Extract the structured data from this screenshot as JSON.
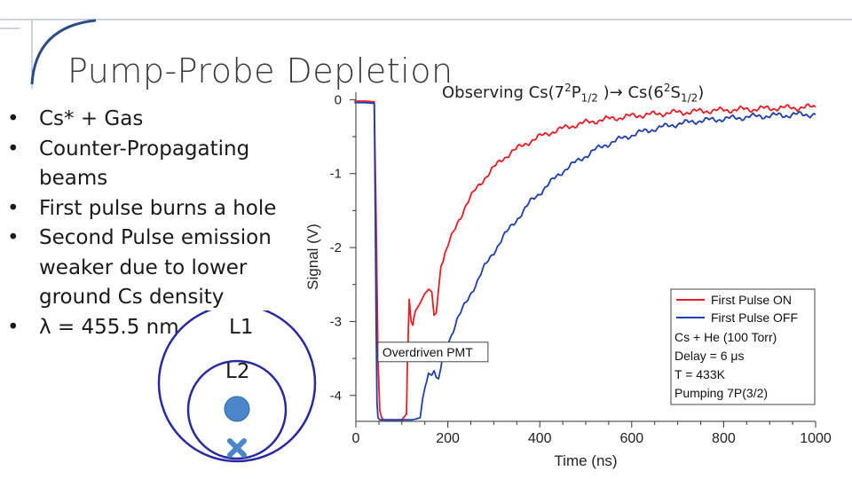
{
  "slide": {
    "title": "Pump-Probe Depletion",
    "bullets": [
      "Cs* + Gas",
      "Counter-Propagating beams",
      "First pulse burns a hole",
      "Second Pulse emission weaker due to lower ground Cs density",
      "λ = 455.5 nm"
    ],
    "bullet_glyph": "•",
    "subtitle": {
      "prefix": "Observing Cs(7",
      "sup1": "2",
      "mid1": "P",
      "sub1": "1/2",
      "mid2": " )→ Cs(6",
      "sup2": "2",
      "mid3": "S",
      "sub2": "1/2",
      "suffix": ")"
    },
    "diagram": {
      "outer_label": "L1",
      "inner_label": "L2",
      "marker_icon": "x-cross-icon",
      "colors": {
        "ring": "#2a2aa0",
        "dot": "#4a86c8",
        "cross": "#4a86c8"
      }
    },
    "colors": {
      "accent_line": "#2b4e86",
      "deco_rule": "#9aa7c0"
    }
  },
  "chart_data": {
    "type": "line",
    "xlabel": "Time (ns)",
    "ylabel": "Signal (V)",
    "xlim": [
      0,
      1000
    ],
    "ylim": [
      -4.35,
      0.1
    ],
    "xticks": [
      "0",
      "200",
      "400",
      "600",
      "800",
      "1000"
    ],
    "yticks": [
      "0",
      "-1",
      "-2",
      "-3",
      "-4"
    ],
    "annotation": "Overdriven PMT",
    "legend": {
      "placement": "bottom-right",
      "entries": [
        "First Pulse ON",
        "First Pulse OFF"
      ],
      "notes": [
        "Cs + He (100 Torr)",
        "Delay = 6 μs",
        "T = 433K",
        "Pumping 7P(3/2)"
      ]
    },
    "series": [
      {
        "name": "First Pulse ON",
        "color": "#e81c24",
        "x": [
          -3,
          0,
          20,
          40,
          44,
          48,
          52,
          56,
          60,
          80,
          100,
          110,
          112,
          116,
          120,
          124,
          126,
          130,
          140,
          150,
          158,
          165,
          170,
          175,
          180,
          185,
          190,
          200,
          220,
          240,
          260,
          280,
          300,
          320,
          340,
          360,
          380,
          400,
          420,
          440,
          460,
          480,
          500,
          520,
          540,
          560,
          580,
          600,
          620,
          640,
          660,
          680,
          700,
          720,
          740,
          760,
          780,
          800,
          820,
          840,
          860,
          880,
          900,
          920,
          940,
          960,
          980,
          1000
        ],
        "y": [
          -0.02,
          -0.02,
          -0.02,
          -0.03,
          -1.6,
          -3.5,
          -4.2,
          -4.3,
          -4.33,
          -4.33,
          -4.33,
          -4.25,
          -3.6,
          -2.7,
          -3.0,
          -3.05,
          -2.95,
          -2.85,
          -2.75,
          -2.62,
          -2.52,
          -2.6,
          -2.9,
          -2.9,
          -2.55,
          -2.25,
          -2.2,
          -1.98,
          -1.68,
          -1.42,
          -1.22,
          -1.06,
          -0.92,
          -0.8,
          -0.7,
          -0.63,
          -0.56,
          -0.5,
          -0.45,
          -0.41,
          -0.37,
          -0.34,
          -0.31,
          -0.29,
          -0.27,
          -0.25,
          -0.24,
          -0.22,
          -0.21,
          -0.2,
          -0.19,
          -0.18,
          -0.17,
          -0.17,
          -0.16,
          -0.15,
          -0.15,
          -0.14,
          -0.14,
          -0.13,
          -0.13,
          -0.12,
          -0.12,
          -0.11,
          -0.11,
          -0.11,
          -0.1,
          -0.1
        ]
      },
      {
        "name": "First Pulse OFF",
        "color": "#1f3fa8",
        "x": [
          -3,
          0,
          20,
          40,
          42,
          44,
          46,
          48,
          52,
          56,
          60,
          80,
          100,
          120,
          130,
          140,
          145,
          150,
          158,
          160,
          165,
          170,
          175,
          180,
          185,
          190,
          200,
          220,
          240,
          260,
          280,
          300,
          320,
          340,
          360,
          380,
          400,
          420,
          440,
          460,
          480,
          500,
          520,
          540,
          560,
          580,
          600,
          620,
          640,
          660,
          680,
          700,
          720,
          740,
          760,
          780,
          800,
          820,
          840,
          860,
          880,
          900,
          920,
          940,
          960,
          980,
          1000
        ],
        "y": [
          -0.04,
          -0.04,
          -0.04,
          -0.05,
          -1.5,
          -3.0,
          -4.1,
          -4.3,
          -4.33,
          -4.33,
          -4.33,
          -4.33,
          -4.33,
          -4.33,
          -4.32,
          -4.3,
          -4.05,
          -3.9,
          -3.72,
          -3.7,
          -3.75,
          -3.65,
          -3.75,
          -3.8,
          -3.6,
          -3.42,
          -3.3,
          -2.98,
          -2.74,
          -2.5,
          -2.26,
          -2.06,
          -1.86,
          -1.7,
          -1.54,
          -1.38,
          -1.26,
          -1.14,
          -1.02,
          -0.92,
          -0.84,
          -0.76,
          -0.68,
          -0.62,
          -0.57,
          -0.52,
          -0.48,
          -0.44,
          -0.41,
          -0.38,
          -0.35,
          -0.33,
          -0.31,
          -0.29,
          -0.28,
          -0.27,
          -0.26,
          -0.25,
          -0.24,
          -0.23,
          -0.22,
          -0.22,
          -0.21,
          -0.21,
          -0.2,
          -0.2,
          -0.2
        ]
      }
    ]
  }
}
